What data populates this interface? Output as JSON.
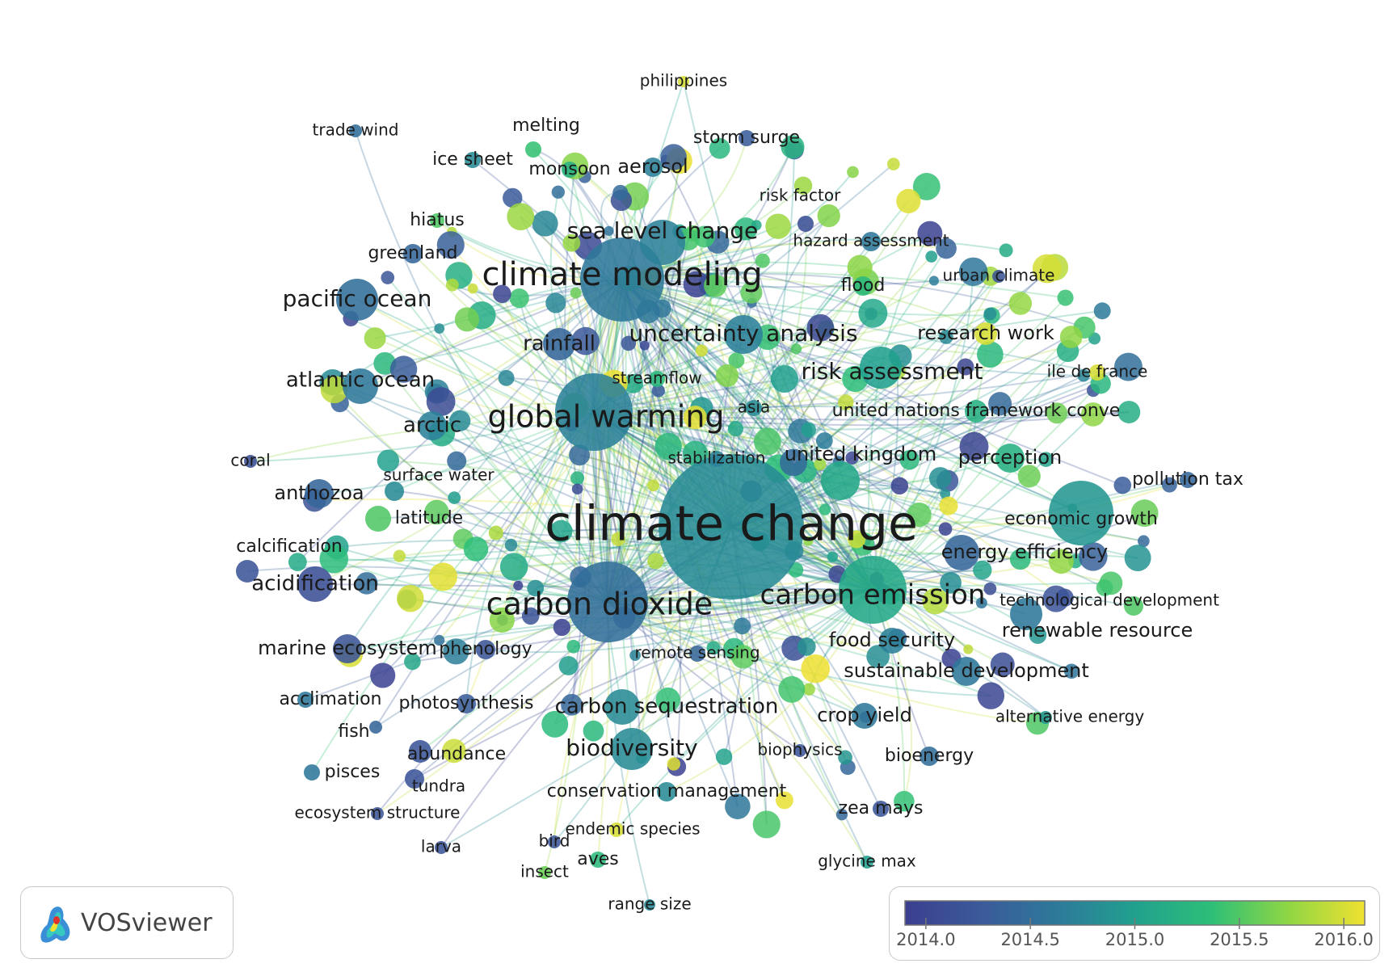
{
  "app": {
    "name": "VOSviewer"
  },
  "legend": {
    "ticks": [
      "2014.0",
      "2014.5",
      "2015.0",
      "2015.5",
      "2016.0"
    ],
    "range": [
      2013.9,
      2016.1
    ]
  },
  "colors": {
    "scale": [
      "#3b3f8f",
      "#3b5a9a",
      "#2d7a9a",
      "#21a08e",
      "#2dbf78",
      "#8fd644",
      "#f0e130"
    ]
  },
  "terms": [
    {
      "label": "climate change",
      "size": 90,
      "year": 2014.8,
      "fs": 60
    },
    {
      "label": "climate modeling",
      "size": 52,
      "year": 2014.6,
      "fs": 40
    },
    {
      "label": "global warming",
      "size": 48,
      "year": 2014.7,
      "fs": 38
    },
    {
      "label": "carbon dioxide",
      "size": 50,
      "year": 2014.5,
      "fs": 38
    },
    {
      "label": "carbon emission",
      "size": 42,
      "year": 2015.1,
      "fs": 34
    },
    {
      "label": "sea level change",
      "size": 28,
      "year": 2014.7,
      "fs": 28
    },
    {
      "label": "pacific ocean",
      "size": 26,
      "year": 2014.5,
      "fs": 28
    },
    {
      "label": "atlantic ocean",
      "size": 22,
      "year": 2014.6,
      "fs": 26
    },
    {
      "label": "risk assessment",
      "size": 26,
      "year": 2015.0,
      "fs": 28
    },
    {
      "label": "uncertainty analysis",
      "size": 24,
      "year": 2014.7,
      "fs": 28
    },
    {
      "label": "rainfall",
      "size": 20,
      "year": 2014.4,
      "fs": 26
    },
    {
      "label": "arctic",
      "size": 18,
      "year": 2014.7,
      "fs": 26
    },
    {
      "label": "acidification",
      "size": 22,
      "year": 2014.1,
      "fs": 26
    },
    {
      "label": "anthozoa",
      "size": 18,
      "year": 2014.4,
      "fs": 24
    },
    {
      "label": "marine ecosystem",
      "size": 18,
      "year": 2014.2,
      "fs": 24
    },
    {
      "label": "carbon sequestration",
      "size": 22,
      "year": 2014.8,
      "fs": 26
    },
    {
      "label": "biodiversity",
      "size": 26,
      "year": 2014.8,
      "fs": 28
    },
    {
      "label": "united kingdom",
      "size": 24,
      "year": 2015.1,
      "fs": 24
    },
    {
      "label": "perception",
      "size": 18,
      "year": 2015.2,
      "fs": 24
    },
    {
      "label": "energy efficiency",
      "size": 22,
      "year": 2014.4,
      "fs": 24
    },
    {
      "label": "economic growth",
      "size": 40,
      "year": 2014.9,
      "fs": 22
    },
    {
      "label": "renewable resource",
      "size": 20,
      "year": 2014.6,
      "fs": 24
    },
    {
      "label": "sustainable development",
      "size": 18,
      "year": 2014.6,
      "fs": 24
    },
    {
      "label": "food security",
      "size": 16,
      "year": 2014.7,
      "fs": 24
    },
    {
      "label": "crop yield",
      "size": 16,
      "year": 2014.6,
      "fs": 24
    },
    {
      "label": "research work",
      "size": 14,
      "year": 2016.0,
      "fs": 24
    },
    {
      "label": "united nations framework conve",
      "size": 14,
      "year": 2015.2,
      "fs": 22
    },
    {
      "label": "aerosol",
      "size": 12,
      "year": 2014.7,
      "fs": 24
    },
    {
      "label": "monsoon",
      "size": 10,
      "year": 2015.2,
      "fs": 22
    },
    {
      "label": "ice sheet",
      "size": 10,
      "year": 2014.8,
      "fs": 22
    },
    {
      "label": "melting",
      "size": 10,
      "year": 2015.4,
      "fs": 22
    },
    {
      "label": "trade wind",
      "size": 8,
      "year": 2014.5,
      "fs": 20
    },
    {
      "label": "philippines",
      "size": 7,
      "year": 2016.0,
      "fs": 20
    },
    {
      "label": "storm surge",
      "size": 10,
      "year": 2014.3,
      "fs": 22
    },
    {
      "label": "risk factor",
      "size": 10,
      "year": 2014.1,
      "fs": 20
    },
    {
      "label": "hazard assessment",
      "size": 12,
      "year": 2014.6,
      "fs": 20
    },
    {
      "label": "urban climate",
      "size": 8,
      "year": 2014.2,
      "fs": 20
    },
    {
      "label": "flood",
      "size": 12,
      "year": 2015.3,
      "fs": 22
    },
    {
      "label": "hiatus",
      "size": 9,
      "year": 2015.5,
      "fs": 22
    },
    {
      "label": "greenland",
      "size": 12,
      "year": 2014.4,
      "fs": 22
    },
    {
      "label": "streamflow",
      "size": 10,
      "year": 2015.3,
      "fs": 20
    },
    {
      "label": "asia",
      "size": 10,
      "year": 2014.8,
      "fs": 20
    },
    {
      "label": "ile de france",
      "size": 10,
      "year": 2016.0,
      "fs": 20
    },
    {
      "label": "stabilization",
      "size": 10,
      "year": 2014.7,
      "fs": 20
    },
    {
      "label": "pollution tax",
      "size": 10,
      "year": 2014.4,
      "fs": 22
    },
    {
      "label": "technological development",
      "size": 12,
      "year": 2015.5,
      "fs": 20
    },
    {
      "label": "alternative energy",
      "size": 8,
      "year": 2014.9,
      "fs": 20
    },
    {
      "label": "bioenergy",
      "size": 12,
      "year": 2014.5,
      "fs": 22
    },
    {
      "label": "biophysics",
      "size": 8,
      "year": 2014.2,
      "fs": 20
    },
    {
      "label": "zea mays",
      "size": 10,
      "year": 2014.2,
      "fs": 22
    },
    {
      "label": "glycine max",
      "size": 8,
      "year": 2015.0,
      "fs": 20
    },
    {
      "label": "range size",
      "size": 7,
      "year": 2014.8,
      "fs": 20
    },
    {
      "label": "endemic species",
      "size": 9,
      "year": 2016.0,
      "fs": 20
    },
    {
      "label": "aves",
      "size": 10,
      "year": 2015.3,
      "fs": 22
    },
    {
      "label": "bird",
      "size": 8,
      "year": 2014.2,
      "fs": 20
    },
    {
      "label": "insect",
      "size": 8,
      "year": 2015.6,
      "fs": 20
    },
    {
      "label": "larva",
      "size": 8,
      "year": 2014.2,
      "fs": 20
    },
    {
      "label": "conservation management",
      "size": 12,
      "year": 2014.8,
      "fs": 22
    },
    {
      "label": "remote sensing",
      "size": 10,
      "year": 2014.4,
      "fs": 20
    },
    {
      "label": "phenology",
      "size": 12,
      "year": 2014.2,
      "fs": 22
    },
    {
      "label": "photosynthesis",
      "size": 12,
      "year": 2014.3,
      "fs": 22
    },
    {
      "label": "abundance",
      "size": 14,
      "year": 2014.2,
      "fs": 22
    },
    {
      "label": "tundra",
      "size": 12,
      "year": 2014.2,
      "fs": 20
    },
    {
      "label": "pisces",
      "size": 10,
      "year": 2014.6,
      "fs": 22
    },
    {
      "label": "fish",
      "size": 8,
      "year": 2014.4,
      "fs": 22
    },
    {
      "label": "acclimation",
      "size": 10,
      "year": 2014.6,
      "fs": 22
    },
    {
      "label": "ecosystem structure",
      "size": 8,
      "year": 2014.2,
      "fs": 20
    },
    {
      "label": "calcification",
      "size": 14,
      "year": 2014.2,
      "fs": 22
    },
    {
      "label": "coral",
      "size": 8,
      "year": 2014.1,
      "fs": 20
    },
    {
      "label": "latitude",
      "size": 16,
      "year": 2015.5,
      "fs": 22
    },
    {
      "label": "surface water",
      "size": 12,
      "year": 2014.8,
      "fs": 20
    }
  ]
}
